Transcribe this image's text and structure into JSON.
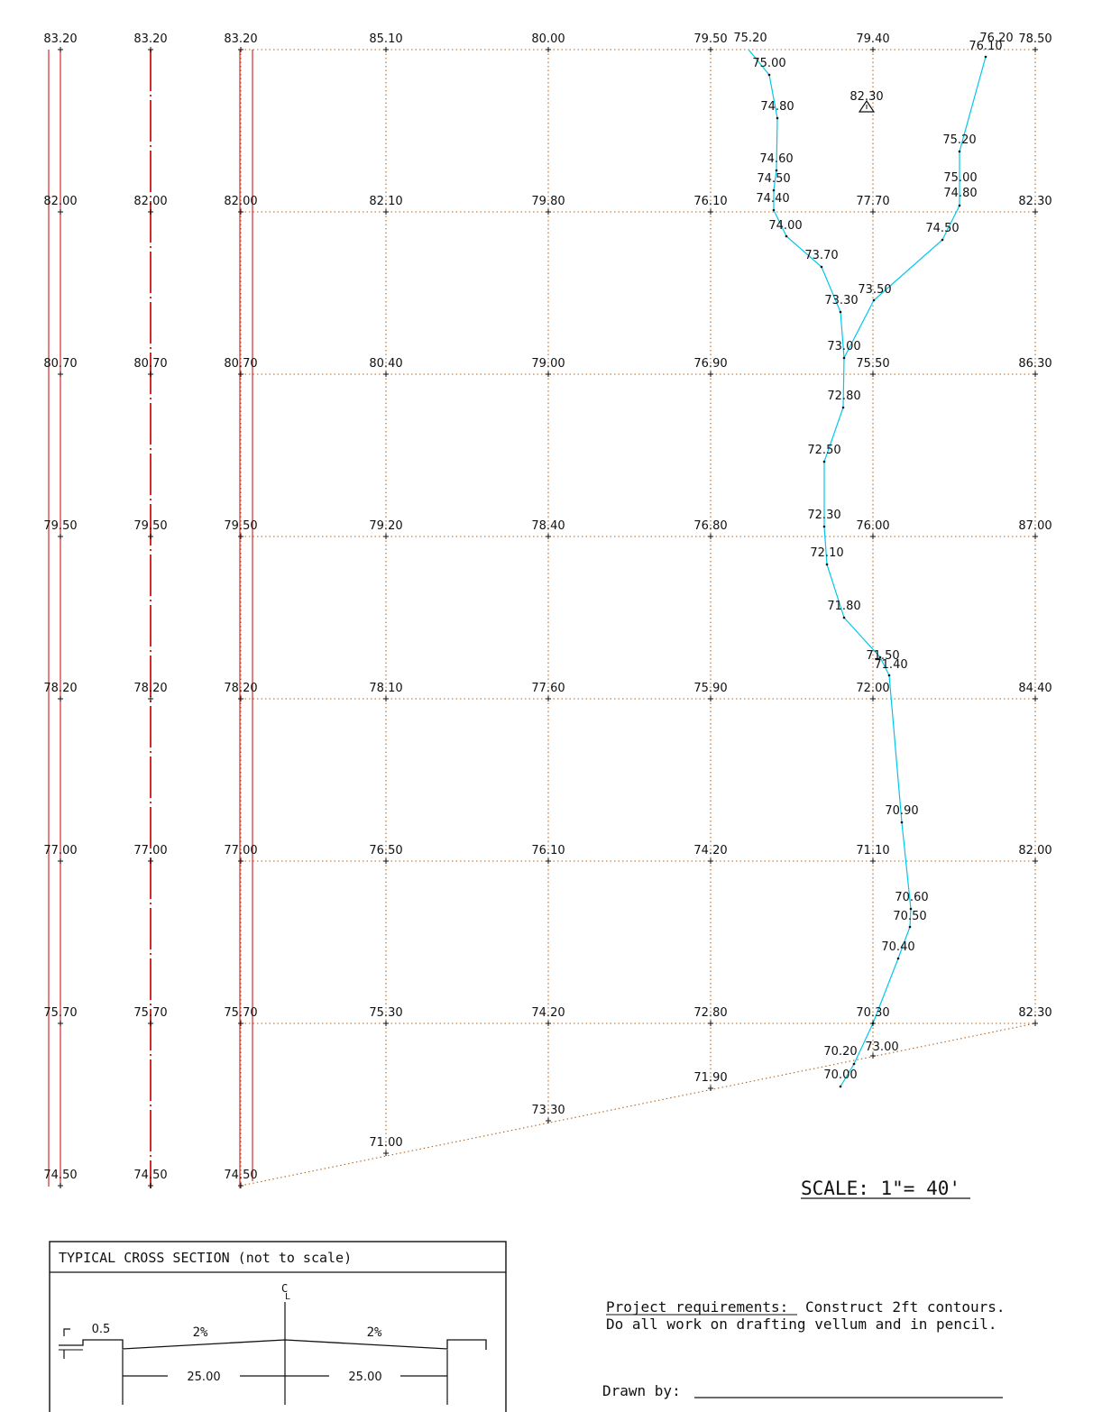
{
  "grid": {
    "columns": 6,
    "rows": 7,
    "elevations": [
      [
        "85.10",
        "80.00",
        "79.50",
        "79.40",
        "78.50"
      ],
      [
        "82.10",
        "79.80",
        "76.10",
        "77.70",
        "82.30"
      ],
      [
        "80.40",
        "79.00",
        "76.90",
        "75.50",
        "86.30"
      ],
      [
        "79.20",
        "78.40",
        "76.80",
        "76.00",
        "87.00"
      ],
      [
        "78.10",
        "77.60",
        "75.90",
        "72.00",
        "84.40"
      ],
      [
        "76.50",
        "76.10",
        "74.20",
        "71.10",
        "82.00"
      ],
      [
        "75.30",
        "74.20",
        "72.80",
        "70.30",
        "82.30"
      ]
    ],
    "edge_elevations": [
      "83.20",
      "82.00",
      "80.70",
      "79.50",
      "78.20",
      "77.00",
      "75.70",
      "74.50"
    ],
    "bottom_row": [
      "71.00",
      "73.30",
      "71.90",
      "73.00"
    ]
  },
  "edge_lines": {
    "color_red": "#d62b2b",
    "color_grid": "#b5651d"
  },
  "benchmark": {
    "label": "82.30",
    "symbol": "triangle-benchmark"
  },
  "stream": {
    "color": "#00c8e8",
    "main_channel": [
      "75.20",
      "75.00",
      "74.80",
      "74.60",
      "74.50",
      "74.40",
      "74.00",
      "73.70",
      "73.30",
      "73.00",
      "72.80",
      "72.50",
      "72.30",
      "72.10",
      "71.80",
      "71.50",
      "71.40",
      "70.90",
      "70.60",
      "70.50",
      "70.40",
      "70.20",
      "70.00"
    ],
    "east_branch": [
      "76.20",
      "76.10",
      "75.20",
      "75.00",
      "74.80",
      "74.50",
      "73.50"
    ]
  },
  "scale": {
    "text": "SCALE:  1\"= 40'"
  },
  "cross_section": {
    "title": "TYPICAL CROSS SECTION (not to scale)",
    "curb_label": "0.5",
    "slope_left": "2%",
    "slope_right": "2%",
    "width_left": "25.00",
    "width_right": "25.00",
    "centerline": "CL"
  },
  "notes": {
    "requirements_label": "Project requirements:",
    "requirements_text_1": "Construct 2ft contours.",
    "requirements_text_2": "Do all work on drafting vellum and in pencil.",
    "drawn_by_label": "Drawn by:"
  }
}
